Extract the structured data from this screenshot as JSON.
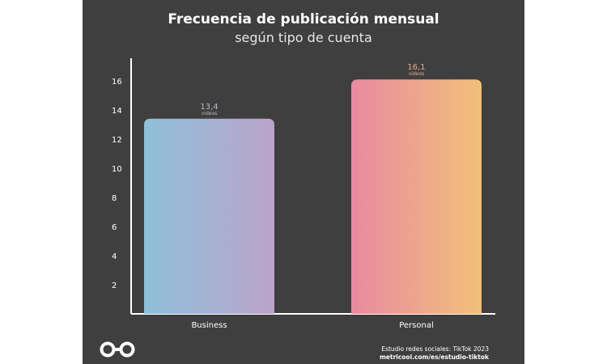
{
  "header": {
    "title": "Frecuencia de publicación mensual",
    "subtitle": "según tipo de cuenta"
  },
  "chart_data": {
    "type": "bar",
    "title": "Frecuencia de publicación mensual",
    "subtitle": "según tipo de cuenta",
    "categories": [
      "Business",
      "Personal"
    ],
    "values": [
      13.4,
      16.1
    ],
    "value_labels": [
      "13,4",
      "16,1"
    ],
    "value_unit": "videos",
    "y_ticks": [
      2,
      4,
      6,
      8,
      10,
      12,
      14,
      16
    ],
    "ylim": [
      0,
      17.5
    ],
    "xlabel": "",
    "ylabel": "",
    "grid": false,
    "colors": {
      "background": "#3f3f3f",
      "axis": "#ffffff",
      "business_gradient": [
        "#8fc0d8",
        "#bba3cc"
      ],
      "personal_gradient": [
        "#e98aa0",
        "#f1c07a"
      ],
      "business_label": "#b9b9c4",
      "personal_label": "#e7a98c"
    }
  },
  "footer": {
    "logo": "metricool-logo-icon",
    "source_line1": "Estudio redes sociales: TikTok 2023",
    "source_line2": "metricool.com/es/estudio-tiktok"
  }
}
